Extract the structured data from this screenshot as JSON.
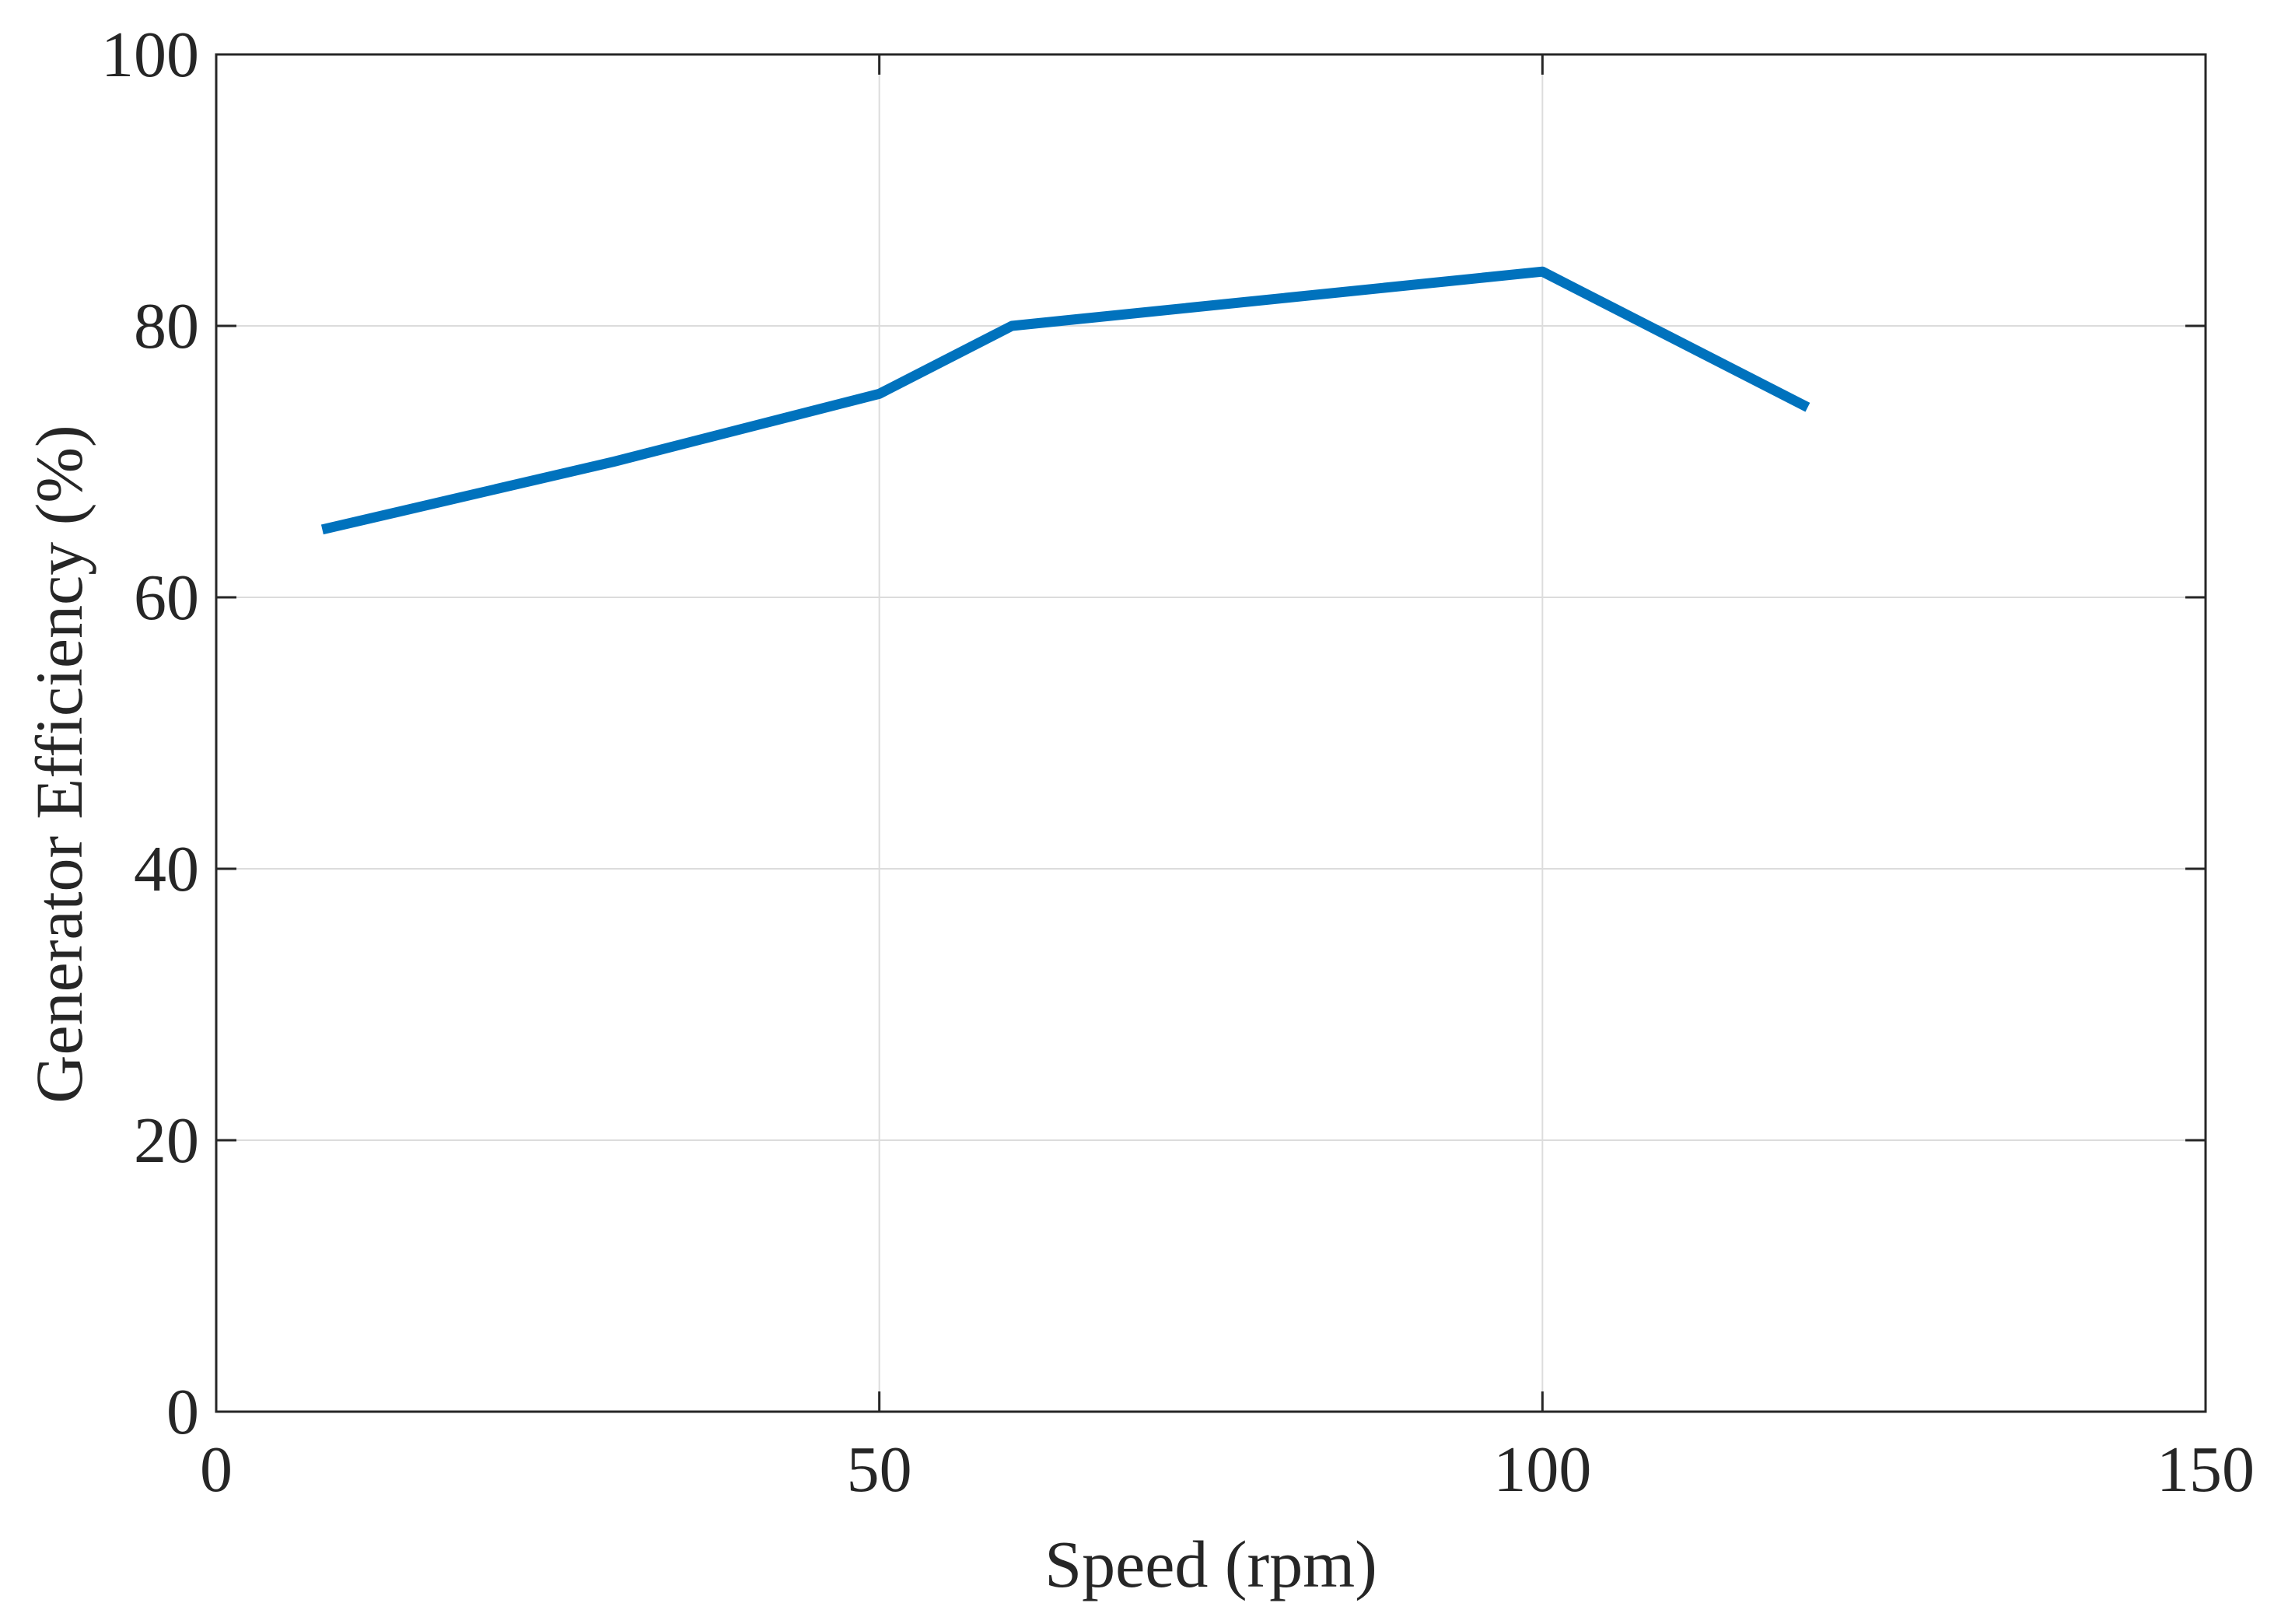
{
  "chart_data": {
    "type": "line",
    "title": "",
    "xlabel": "Speed (rpm)",
    "ylabel": "Generator Efficiency (%)",
    "xlim": [
      0,
      150
    ],
    "ylim": [
      0,
      100
    ],
    "xticks": [
      0,
      50,
      100,
      150
    ],
    "yticks": [
      0,
      20,
      40,
      60,
      80,
      100
    ],
    "xtick_labels": [
      "0",
      "50",
      "100",
      "150"
    ],
    "ytick_labels": [
      "0",
      "20",
      "40",
      "60",
      "80",
      "100"
    ],
    "grid": true,
    "series": [
      {
        "name": "Generator Efficiency",
        "color": "#0072BD",
        "x": [
          8,
          30,
          50,
          60,
          100,
          120
        ],
        "y": [
          65,
          70,
          75,
          80,
          84,
          74
        ]
      }
    ]
  },
  "colors": {
    "axes": "#262626",
    "grid": "#dcdcdc",
    "line": "#0072BD"
  }
}
